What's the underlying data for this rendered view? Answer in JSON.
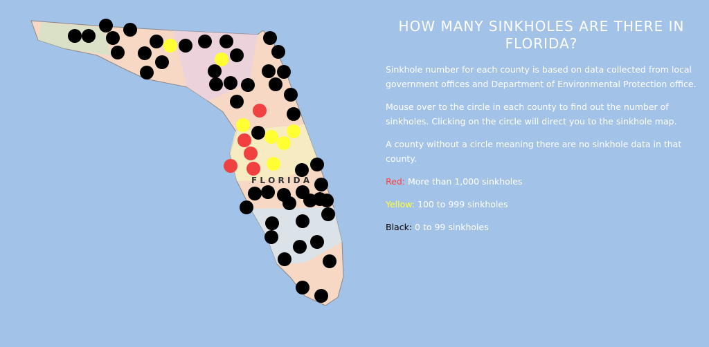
{
  "map": {
    "label": "F L O R I D A"
  },
  "info": {
    "title": "HOW MANY SINKHOLES ARE THERE IN FLORIDA?",
    "paragraphs": [
      "Sinkhole number for each county is based on data collected from local government offices and Department of Environmental Protection office.",
      "Mouse over to the circle in each county to find out the number of sinkholes. Clicking on the circle will direct you to the sinkhole map.",
      "A county without a circle meaning there are no sinkhole data in that county."
    ],
    "legend": [
      {
        "label": "Red:",
        "text": "More than 1,000 sinkholes"
      },
      {
        "label": "Yellow:",
        "text": "100 to 999 sinkholes"
      },
      {
        "label": "Black:",
        "text": "0 to 99 sinkholes"
      }
    ]
  }
}
